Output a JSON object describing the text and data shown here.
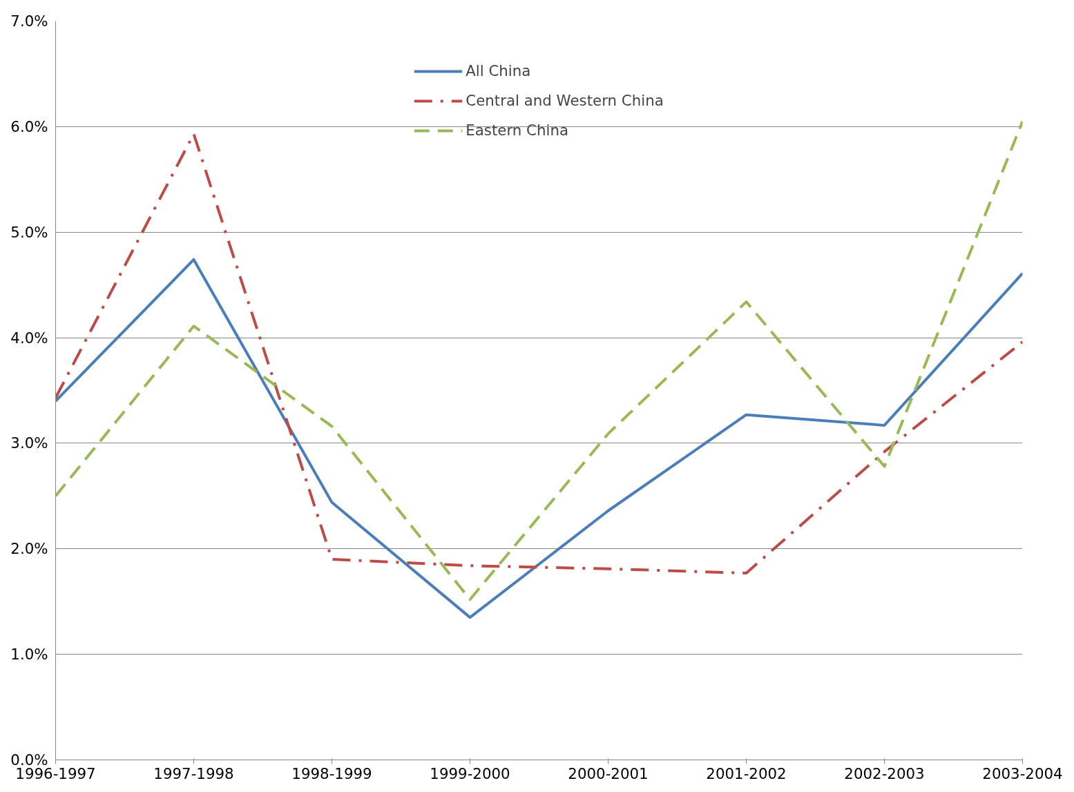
{
  "chart_data": {
    "type": "line",
    "categories": [
      "1996-1997",
      "1997-1998",
      "1998-1999",
      "1999-2000",
      "2000-2001",
      "2001-2002",
      "2002-2003",
      "2003-2004"
    ],
    "series": [
      {
        "name": "All China",
        "color": "#4a7ebb",
        "line_style": "solid",
        "values": [
          3.4,
          4.74,
          2.44,
          1.35,
          2.36,
          3.27,
          3.17,
          4.61
        ]
      },
      {
        "name": "Central and Western China",
        "color": "#be4b48",
        "line_style": "dashdot",
        "values": [
          3.43,
          5.93,
          1.9,
          1.84,
          1.81,
          1.77,
          2.92,
          3.96
        ]
      },
      {
        "name": "Eastern China",
        "color": "#98b954",
        "line_style": "dashed",
        "values": [
          2.5,
          4.11,
          3.16,
          1.52,
          3.09,
          4.34,
          2.78,
          6.05
        ]
      }
    ],
    "ylim": [
      0,
      7
    ],
    "yticks": [
      {
        "value": 0,
        "label": "0.0%"
      },
      {
        "value": 1,
        "label": "1.0%"
      },
      {
        "value": 2,
        "label": "2.0%"
      },
      {
        "value": 3,
        "label": "3.0%"
      },
      {
        "value": 4,
        "label": "4.0%"
      },
      {
        "value": 5,
        "label": "5.0%"
      },
      {
        "value": 6,
        "label": "6.0%"
      },
      {
        "value": 7,
        "label": "7.0%"
      }
    ],
    "grid": "y",
    "legend": "top",
    "marker": "none"
  }
}
